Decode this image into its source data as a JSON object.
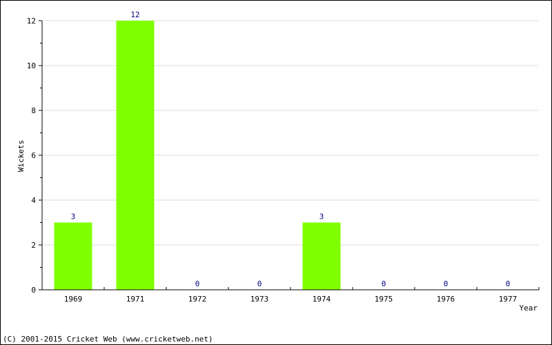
{
  "chart_data": {
    "type": "bar",
    "categories": [
      "1969",
      "1971",
      "1972",
      "1973",
      "1974",
      "1975",
      "1976",
      "1977"
    ],
    "values": [
      3,
      12,
      0,
      0,
      3,
      0,
      0,
      0
    ],
    "xlabel": "Year",
    "ylabel": "Wickets",
    "ylim": [
      0,
      12
    ],
    "yticks": [
      0,
      2,
      4,
      6,
      8,
      10,
      12
    ],
    "grid": true,
    "legend": "none",
    "bar_color": "#80ff00",
    "label_color": "#000080"
  },
  "footer": {
    "copyright": "(C) 2001-2015 Cricket Web (www.cricketweb.net)"
  }
}
